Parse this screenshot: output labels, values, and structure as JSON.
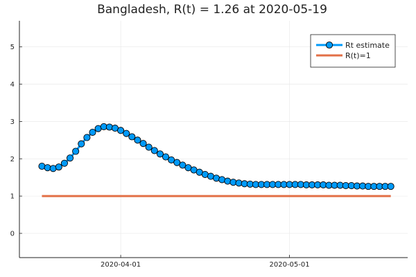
{
  "chart_data": {
    "type": "line",
    "title": "Bangladesh, R(t) = 1.26 at 2020-05-19",
    "xlabel": "",
    "ylabel": "",
    "x_start": "2020-03-18",
    "x_end": "2020-05-19",
    "xlim": [
      "2020-03-14",
      "2020-05-22"
    ],
    "ylim": [
      -0.65,
      5.7
    ],
    "x_ticks": [
      "2020-04-01",
      "2020-05-01"
    ],
    "y_ticks": [
      0,
      1,
      2,
      3,
      4,
      5
    ],
    "grid": true,
    "legend_position": "top-right",
    "series": [
      {
        "name": "Rt estimate",
        "color": "#009AFA",
        "marker": "circle",
        "values": [
          1.8,
          1.76,
          1.74,
          1.78,
          1.88,
          2.02,
          2.2,
          2.4,
          2.57,
          2.71,
          2.81,
          2.86,
          2.85,
          2.82,
          2.76,
          2.68,
          2.59,
          2.5,
          2.41,
          2.31,
          2.22,
          2.13,
          2.05,
          1.97,
          1.9,
          1.83,
          1.76,
          1.7,
          1.64,
          1.58,
          1.53,
          1.48,
          1.44,
          1.4,
          1.37,
          1.35,
          1.33,
          1.32,
          1.31,
          1.31,
          1.31,
          1.31,
          1.31,
          1.31,
          1.31,
          1.31,
          1.31,
          1.3,
          1.3,
          1.3,
          1.3,
          1.29,
          1.29,
          1.29,
          1.28,
          1.28,
          1.27,
          1.27,
          1.26,
          1.26,
          1.26,
          1.26,
          1.26
        ]
      },
      {
        "name": "R(t)=1",
        "color": "#E26F46",
        "marker": "none",
        "values": [
          1,
          1
        ]
      }
    ]
  }
}
